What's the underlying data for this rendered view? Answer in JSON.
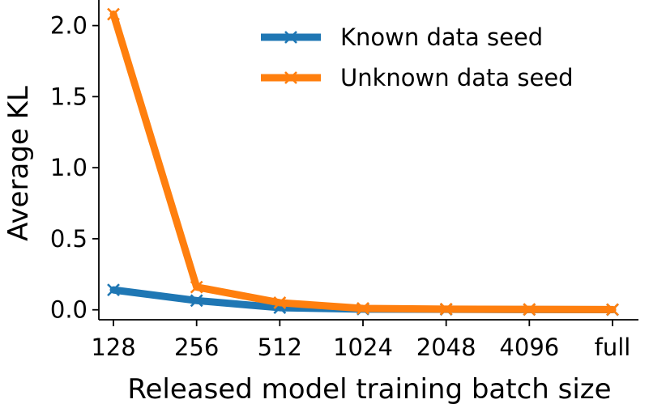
{
  "chart_data": {
    "type": "line",
    "xlabel": "Released model training batch size",
    "ylabel": "Average KL",
    "categories": [
      "128",
      "256",
      "512",
      "1024",
      "2048",
      "4096",
      "full"
    ],
    "yticks": [
      "0.0",
      "0.5",
      "1.0",
      "1.5",
      "2.0"
    ],
    "ytick_values": [
      0.0,
      0.5,
      1.0,
      1.5,
      2.0
    ],
    "ylim": [
      -0.07,
      2.18
    ],
    "grid": false,
    "legend_position": "top-right",
    "marker": "x",
    "series": [
      {
        "name": "Known data seed",
        "color": "#1f77b4",
        "values": [
          0.14,
          0.065,
          0.015,
          0.005,
          0.003,
          0.002,
          0.001
        ]
      },
      {
        "name": "Unknown data seed",
        "color": "#ff7f0e",
        "values": [
          2.08,
          0.16,
          0.05,
          0.01,
          0.005,
          0.003,
          0.002
        ]
      }
    ]
  }
}
